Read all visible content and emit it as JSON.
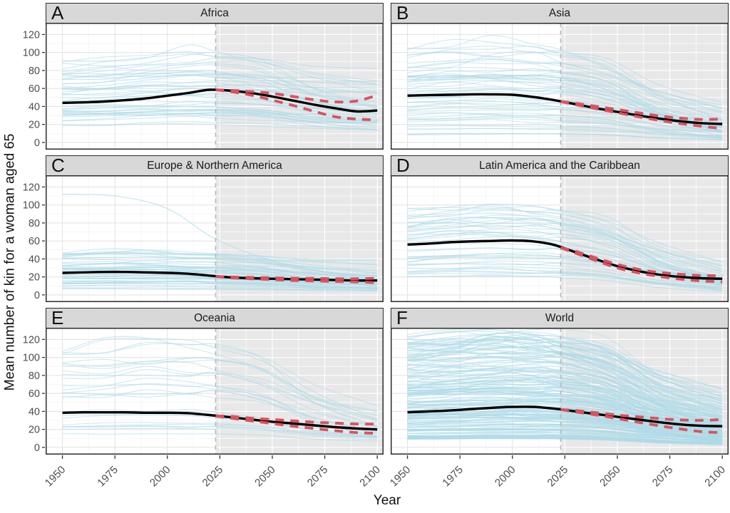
{
  "figure": {
    "y_axis_label": "Mean number of kin for a woman aged 65",
    "x_axis_label": "Year"
  },
  "colors": {
    "country_line": "#AEDAE7",
    "mean_line": "#000000",
    "uncertainty_line": "#D9525F",
    "projection_shade": "#E8E8E8",
    "strip_background": "#D8D8D8",
    "panel_border": "#2B2B2B",
    "grid_major_on_white": "#E4E4E4",
    "grid_minor_on_white": "#F2F2F2",
    "grid_on_shade": "#FFFFFF",
    "dashed_vline": "#B8B8B8",
    "tick_mark": "#333333",
    "tick_label": "#4D4D4D",
    "axis_label": "#111111"
  },
  "chart_data": {
    "type": "line",
    "facets": "2 columns x 3 rows",
    "x_label": "Year",
    "y_label": "Mean number of kin for a woman aged 65",
    "x_ticks": [
      1950,
      1975,
      2000,
      2025,
      2050,
      2075,
      2100
    ],
    "y_ticks": [
      0,
      20,
      40,
      60,
      80,
      100,
      120
    ],
    "x_minor": [
      1962.5,
      1987.5,
      2012.5,
      2037.5,
      2062.5,
      2087.5
    ],
    "y_minor": [
      10,
      30,
      50,
      70,
      90,
      110,
      130
    ],
    "xlim": [
      1942,
      2103
    ],
    "ylim": [
      -8,
      133
    ],
    "grid": true,
    "projection_start_year": 2023,
    "mean_years": [
      1950,
      1960,
      1970,
      1980,
      1990,
      2000,
      2010,
      2020,
      2030,
      2040,
      2050,
      2060,
      2070,
      2080,
      2090,
      2100
    ],
    "bound_years": [
      2023,
      2030,
      2040,
      2050,
      2060,
      2070,
      2080,
      2090,
      2100
    ],
    "panels": [
      {
        "letter": "A",
        "title": "Africa",
        "mean": [
          44,
          44.5,
          45.5,
          47,
          49,
          52,
          55,
          58.5,
          57.5,
          55,
          51,
          46.5,
          42,
          38,
          34.5,
          35.5
        ],
        "upper": [
          58.5,
          58,
          56.5,
          54.5,
          51,
          47.5,
          45,
          46,
          52.5
        ],
        "lower": [
          58.5,
          56.5,
          52.5,
          47,
          41,
          34.5,
          28.5,
          26,
          25
        ],
        "bg": {
          "seed": 101,
          "n": 46,
          "start": [
            16,
            92
          ],
          "bias": 1.15,
          "end_factor": [
            0.45,
            1.05
          ],
          "peak_year": [
            2000,
            2024
          ],
          "peak_amp": 0.28
        },
        "extra": []
      },
      {
        "letter": "B",
        "title": "Asia",
        "mean": [
          52,
          52.5,
          53,
          53.5,
          53.5,
          53,
          50.5,
          47,
          42.5,
          38,
          34,
          30,
          26.5,
          23.5,
          21.5,
          20.5
        ],
        "upper": [
          45.5,
          43.5,
          40,
          36.5,
          33,
          29.5,
          27,
          25.5,
          26
        ],
        "lower": [
          45.5,
          42,
          37.5,
          33,
          28.5,
          24.5,
          21,
          18,
          15.5
        ],
        "bg": {
          "seed": 202,
          "n": 54,
          "start": [
            8,
            104
          ],
          "bias": 1.35,
          "end_factor": [
            0.15,
            0.55
          ],
          "peak_year": [
            1972,
            2005
          ],
          "peak_amp": 0.22
        },
        "extra": []
      },
      {
        "letter": "C",
        "title": "Europe & Northern America",
        "mean": [
          24.5,
          25,
          25.5,
          25.5,
          25,
          24.5,
          23.5,
          21.5,
          19.5,
          18.5,
          18,
          17.5,
          17,
          16.5,
          16,
          16
        ],
        "upper": [
          20.5,
          20,
          19.5,
          19,
          18.5,
          18.5,
          18,
          18,
          18.5
        ],
        "lower": [
          20.5,
          19,
          18,
          17,
          16,
          15.5,
          15,
          14.5,
          13.5
        ],
        "bg": {
          "seed": 303,
          "n": 50,
          "start": [
            5,
            44
          ],
          "bias": 1.15,
          "end_factor": [
            0.35,
            0.95
          ],
          "peak_year": [
            1962,
            1995
          ],
          "peak_amp": 0.18
        },
        "extra": [
          {
            "years": [
              1950,
              1975,
              2000,
              2023,
              2050,
              2075,
              2100
            ],
            "values": [
              112,
              110,
              96,
              62,
              38,
              26,
              21
            ]
          }
        ]
      },
      {
        "letter": "D",
        "title": "Latin America and the Caribbean",
        "mean": [
          56,
          57,
          58.5,
          59.5,
          60,
          60.5,
          59.5,
          55.5,
          47.5,
          39.5,
          32,
          26.5,
          22.5,
          20,
          18.5,
          18
        ],
        "upper": [
          52.5,
          48.5,
          41,
          34,
          28.5,
          25,
          23,
          21.5,
          21.5
        ],
        "lower": [
          52.5,
          46.5,
          38,
          30,
          24.5,
          20.5,
          17.5,
          15.5,
          14.5
        ],
        "bg": {
          "seed": 404,
          "n": 44,
          "start": [
            18,
            90
          ],
          "bias": 1.1,
          "end_factor": [
            0.12,
            0.45
          ],
          "peak_year": [
            1970,
            1998
          ],
          "peak_amp": 0.25
        },
        "extra": []
      },
      {
        "letter": "E",
        "title": "Oceania",
        "mean": [
          38.5,
          39,
          39,
          39,
          38.5,
          38.5,
          38,
          36,
          33.5,
          31,
          28.5,
          26.5,
          24.5,
          22.5,
          21,
          20
        ],
        "upper": [
          35,
          34.5,
          32.5,
          31,
          29.5,
          28,
          27,
          26,
          26
        ],
        "lower": [
          35,
          32.5,
          29.5,
          26.5,
          23.5,
          21,
          18.5,
          16.5,
          15.5
        ],
        "bg": {
          "seed": 505,
          "n": 26,
          "start": [
            13,
            108
          ],
          "bias": 1.25,
          "end_factor": [
            0.15,
            0.5
          ],
          "peak_year": [
            1985,
            2012
          ],
          "peak_amp": 0.22
        },
        "extra": []
      },
      {
        "letter": "F",
        "title": "World",
        "mean": [
          39,
          40,
          41,
          42.5,
          44,
          45,
          45,
          43,
          40,
          37,
          34,
          31,
          28,
          25.5,
          24,
          23.5
        ],
        "upper": [
          42,
          41,
          38.5,
          36,
          34,
          32,
          30.5,
          30,
          31
        ],
        "lower": [
          42,
          39.5,
          36,
          32,
          28,
          24,
          20.5,
          17.5,
          16.5
        ],
        "bg": {
          "seed": 606,
          "n": 190,
          "start": [
            9,
            118
          ],
          "bias": 1.3,
          "end_factor": [
            0.15,
            0.65
          ],
          "peak_year": [
            1975,
            2015
          ],
          "peak_amp": 0.22
        },
        "extra": []
      }
    ]
  }
}
